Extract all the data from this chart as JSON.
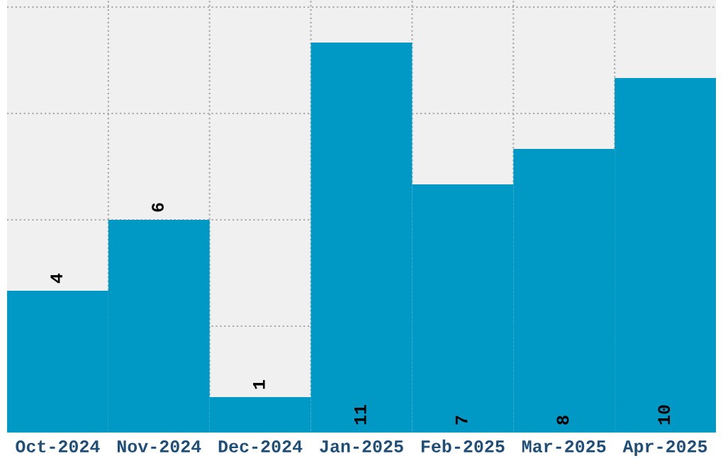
{
  "chart_data": {
    "type": "bar",
    "categories": [
      "Oct-2024",
      "Nov-2024",
      "Dec-2024",
      "Jan-2025",
      "Feb-2025",
      "Mar-2025",
      "Apr-2025"
    ],
    "values": [
      4,
      6,
      1,
      11,
      7,
      8,
      10
    ],
    "color": "#0099c6",
    "data_labels": true,
    "ylim": [
      0,
      12.2
    ],
    "yticks": [
      {
        "value": 0,
        "label": null
      },
      {
        "value": 3,
        "label": null
      },
      {
        "value": 6,
        "label": null
      },
      {
        "value": 9,
        "label": null
      },
      {
        "value": 12,
        "label": null
      }
    ],
    "tick_labels": "x",
    "grid": true
  }
}
